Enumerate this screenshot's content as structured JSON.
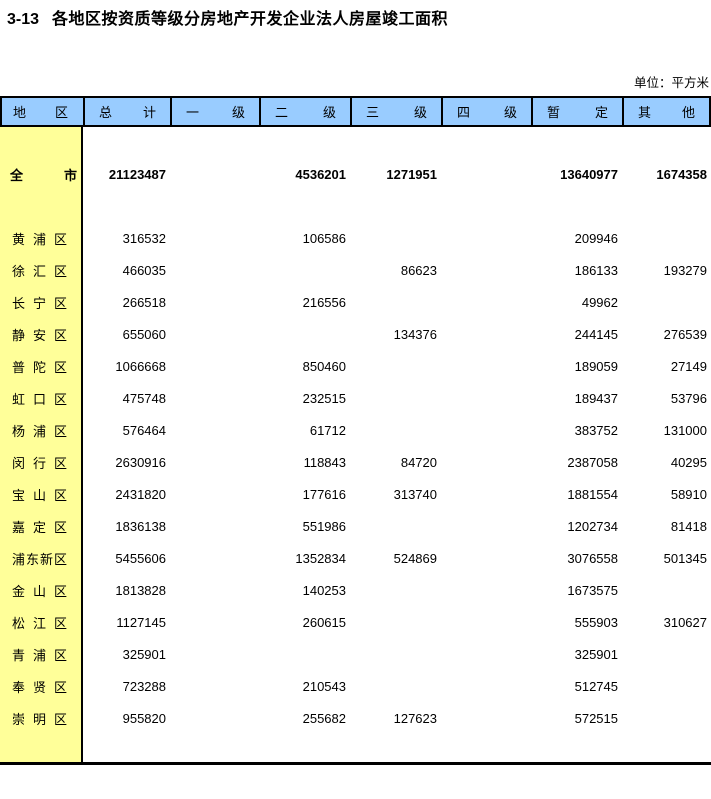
{
  "title": {
    "index": "3-13",
    "text": "各地区按资质等级分房地产开发企业法人房屋竣工面积"
  },
  "unit_label": "单位：平方米",
  "colors": {
    "header_bg": "#99CCFF",
    "region_col_bg": "#FFFF99",
    "border": "#000000"
  },
  "table": {
    "columns": [
      {
        "key": "region",
        "label": "地区"
      },
      {
        "key": "total",
        "label": "总计"
      },
      {
        "key": "level1",
        "label": "一级"
      },
      {
        "key": "level2",
        "label": "二级"
      },
      {
        "key": "level3",
        "label": "三级"
      },
      {
        "key": "level4",
        "label": "四级"
      },
      {
        "key": "provisional",
        "label": "暂定"
      },
      {
        "key": "other",
        "label": "其他"
      }
    ],
    "rows": [
      {
        "region": "全市",
        "is_total": true,
        "values": [
          "21123487",
          "",
          "4536201",
          "1271951",
          "",
          "13640977",
          "1674358"
        ]
      },
      {
        "region": "黄浦区",
        "values": [
          "316532",
          "",
          "106586",
          "",
          "",
          "209946",
          ""
        ]
      },
      {
        "region": "徐汇区",
        "values": [
          "466035",
          "",
          "",
          "86623",
          "",
          "186133",
          "193279"
        ]
      },
      {
        "region": "长宁区",
        "values": [
          "266518",
          "",
          "216556",
          "",
          "",
          "49962",
          ""
        ]
      },
      {
        "region": "静安区",
        "values": [
          "655060",
          "",
          "",
          "134376",
          "",
          "244145",
          "276539"
        ]
      },
      {
        "region": "普陀区",
        "values": [
          "1066668",
          "",
          "850460",
          "",
          "",
          "189059",
          "27149"
        ]
      },
      {
        "region": "虹口区",
        "values": [
          "475748",
          "",
          "232515",
          "",
          "",
          "189437",
          "53796"
        ]
      },
      {
        "region": "杨浦区",
        "values": [
          "576464",
          "",
          "61712",
          "",
          "",
          "383752",
          "131000"
        ]
      },
      {
        "region": "闵行区",
        "values": [
          "2630916",
          "",
          "118843",
          "84720",
          "",
          "2387058",
          "40295"
        ]
      },
      {
        "region": "宝山区",
        "values": [
          "2431820",
          "",
          "177616",
          "313740",
          "",
          "1881554",
          "58910"
        ]
      },
      {
        "region": "嘉定区",
        "values": [
          "1836138",
          "",
          "551986",
          "",
          "",
          "1202734",
          "81418"
        ]
      },
      {
        "region": "浦东新区",
        "values": [
          "5455606",
          "",
          "1352834",
          "524869",
          "",
          "3076558",
          "501345"
        ]
      },
      {
        "region": "金山区",
        "values": [
          "1813828",
          "",
          "140253",
          "",
          "",
          "1673575",
          ""
        ]
      },
      {
        "region": "松江区",
        "values": [
          "1127145",
          "",
          "260615",
          "",
          "",
          "555903",
          "310627"
        ]
      },
      {
        "region": "青浦区",
        "values": [
          "325901",
          "",
          "",
          "",
          "",
          "325901",
          ""
        ]
      },
      {
        "region": "奉贤区",
        "values": [
          "723288",
          "",
          "210543",
          "",
          "",
          "512745",
          ""
        ]
      },
      {
        "region": "崇明区",
        "values": [
          "955820",
          "",
          "255682",
          "127623",
          "",
          "572515",
          ""
        ]
      }
    ]
  }
}
